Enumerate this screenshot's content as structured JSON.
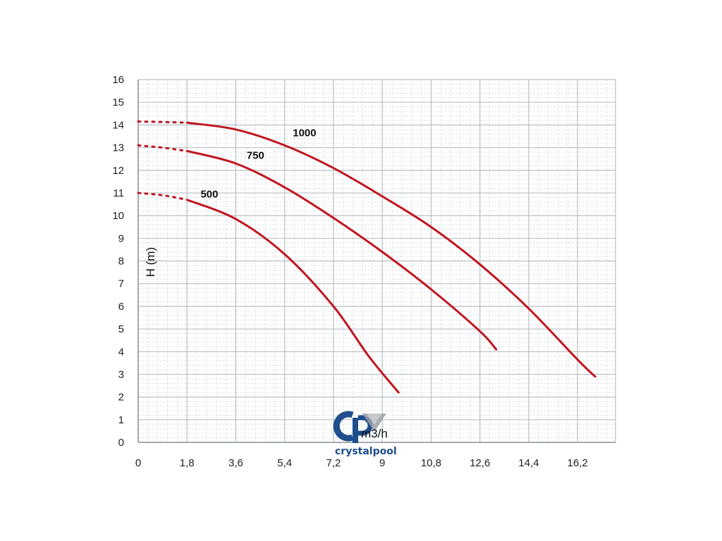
{
  "chart_data": {
    "type": "line",
    "title": "",
    "xlabel": "m3/h",
    "ylabel": "H (m)",
    "xlim": [
      0,
      17.6
    ],
    "ylim": [
      0,
      16
    ],
    "x_ticks": [
      "0",
      "1,8",
      "3,6",
      "5,4",
      "7,2",
      "9",
      "10,8",
      "12,6",
      "14,4",
      "16,2"
    ],
    "y_ticks": [
      "0",
      "1",
      "2",
      "3",
      "4",
      "5",
      "6",
      "7",
      "8",
      "9",
      "10",
      "11",
      "12",
      "13",
      "14",
      "15",
      "16"
    ],
    "grid": true,
    "series": [
      {
        "name": "1000",
        "color": "#c0161f",
        "dotted": [
          [
            0,
            14.15
          ],
          [
            0.9,
            14.13
          ],
          [
            1.8,
            14.1
          ]
        ],
        "points": [
          [
            1.8,
            14.1
          ],
          [
            3.6,
            13.8
          ],
          [
            5.4,
            13.1
          ],
          [
            7.2,
            12.1
          ],
          [
            9,
            10.85
          ],
          [
            10.8,
            9.5
          ],
          [
            12.6,
            7.85
          ],
          [
            14.4,
            5.9
          ],
          [
            16.2,
            3.65
          ],
          [
            16.85,
            2.9
          ]
        ]
      },
      {
        "name": "750",
        "color": "#c0161f",
        "dotted": [
          [
            0,
            13.1
          ],
          [
            0.9,
            13.0
          ],
          [
            1.8,
            12.85
          ]
        ],
        "points": [
          [
            1.8,
            12.85
          ],
          [
            3.6,
            12.3
          ],
          [
            5.4,
            11.25
          ],
          [
            7.2,
            9.9
          ],
          [
            9,
            8.4
          ],
          [
            10.8,
            6.75
          ],
          [
            12.6,
            4.9
          ],
          [
            13.2,
            4.1
          ]
        ]
      },
      {
        "name": "500",
        "color": "#c0161f",
        "dotted": [
          [
            0,
            11.0
          ],
          [
            0.9,
            10.9
          ],
          [
            1.8,
            10.7
          ]
        ],
        "points": [
          [
            1.8,
            10.7
          ],
          [
            3.6,
            9.85
          ],
          [
            5.4,
            8.3
          ],
          [
            7.2,
            6.0
          ],
          [
            8.5,
            3.8
          ],
          [
            9.6,
            2.2
          ]
        ]
      }
    ]
  },
  "logo": {
    "name": "crystalpool",
    "mark": "cp",
    "text": "crystalpool",
    "primary_color": "#1f4e8c",
    "secondary_color": "#8a8f96"
  }
}
